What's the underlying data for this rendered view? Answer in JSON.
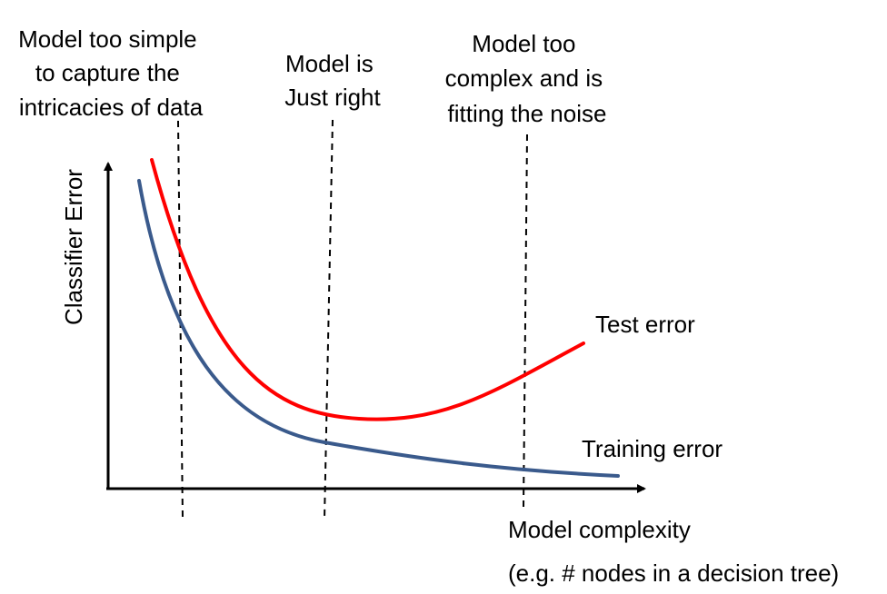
{
  "diagram": {
    "annotations": {
      "simple": [
        "Model too simple",
        "to capture the",
        "intricacies of data"
      ],
      "right": [
        "Model is",
        "Just right"
      ],
      "complex": [
        "Model too",
        "complex and is",
        "fitting the noise"
      ]
    },
    "y_axis_label": "Classifier Error",
    "x_axis_label": [
      "Model complexity",
      "(e.g. # nodes in a decision tree)"
    ],
    "curves": {
      "test": {
        "label": "Test error",
        "color": "#ff0000"
      },
      "training": {
        "label": "Training error",
        "color": "#3a5a8c"
      }
    },
    "axis_color": "#000000",
    "divider_style": "dashed"
  }
}
